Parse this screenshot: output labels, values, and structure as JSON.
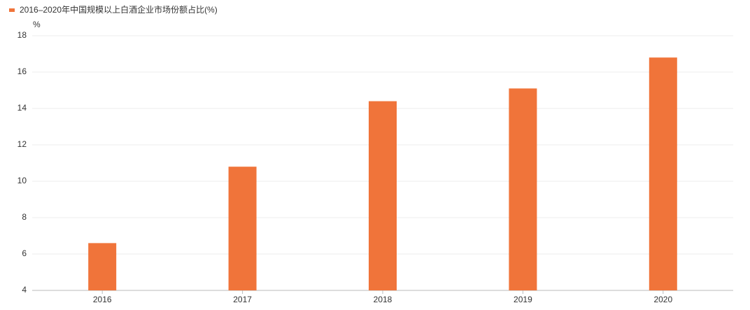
{
  "chart_data": {
    "type": "bar",
    "y_axis_label": "%",
    "categories": [
      "2016",
      "2017",
      "2018",
      "2019",
      "2020"
    ],
    "series": [
      {
        "name": "2016–2020年中国规模以上白酒企业市场份额占比(%)",
        "color": "#f0743a",
        "values": [
          6.6,
          10.8,
          14.4,
          15.1,
          16.8
        ]
      }
    ],
    "ylim": [
      4,
      18
    ],
    "yticks": [
      4,
      6,
      8,
      10,
      12,
      14,
      16,
      18
    ],
    "grid": true,
    "legend": "top-left"
  }
}
